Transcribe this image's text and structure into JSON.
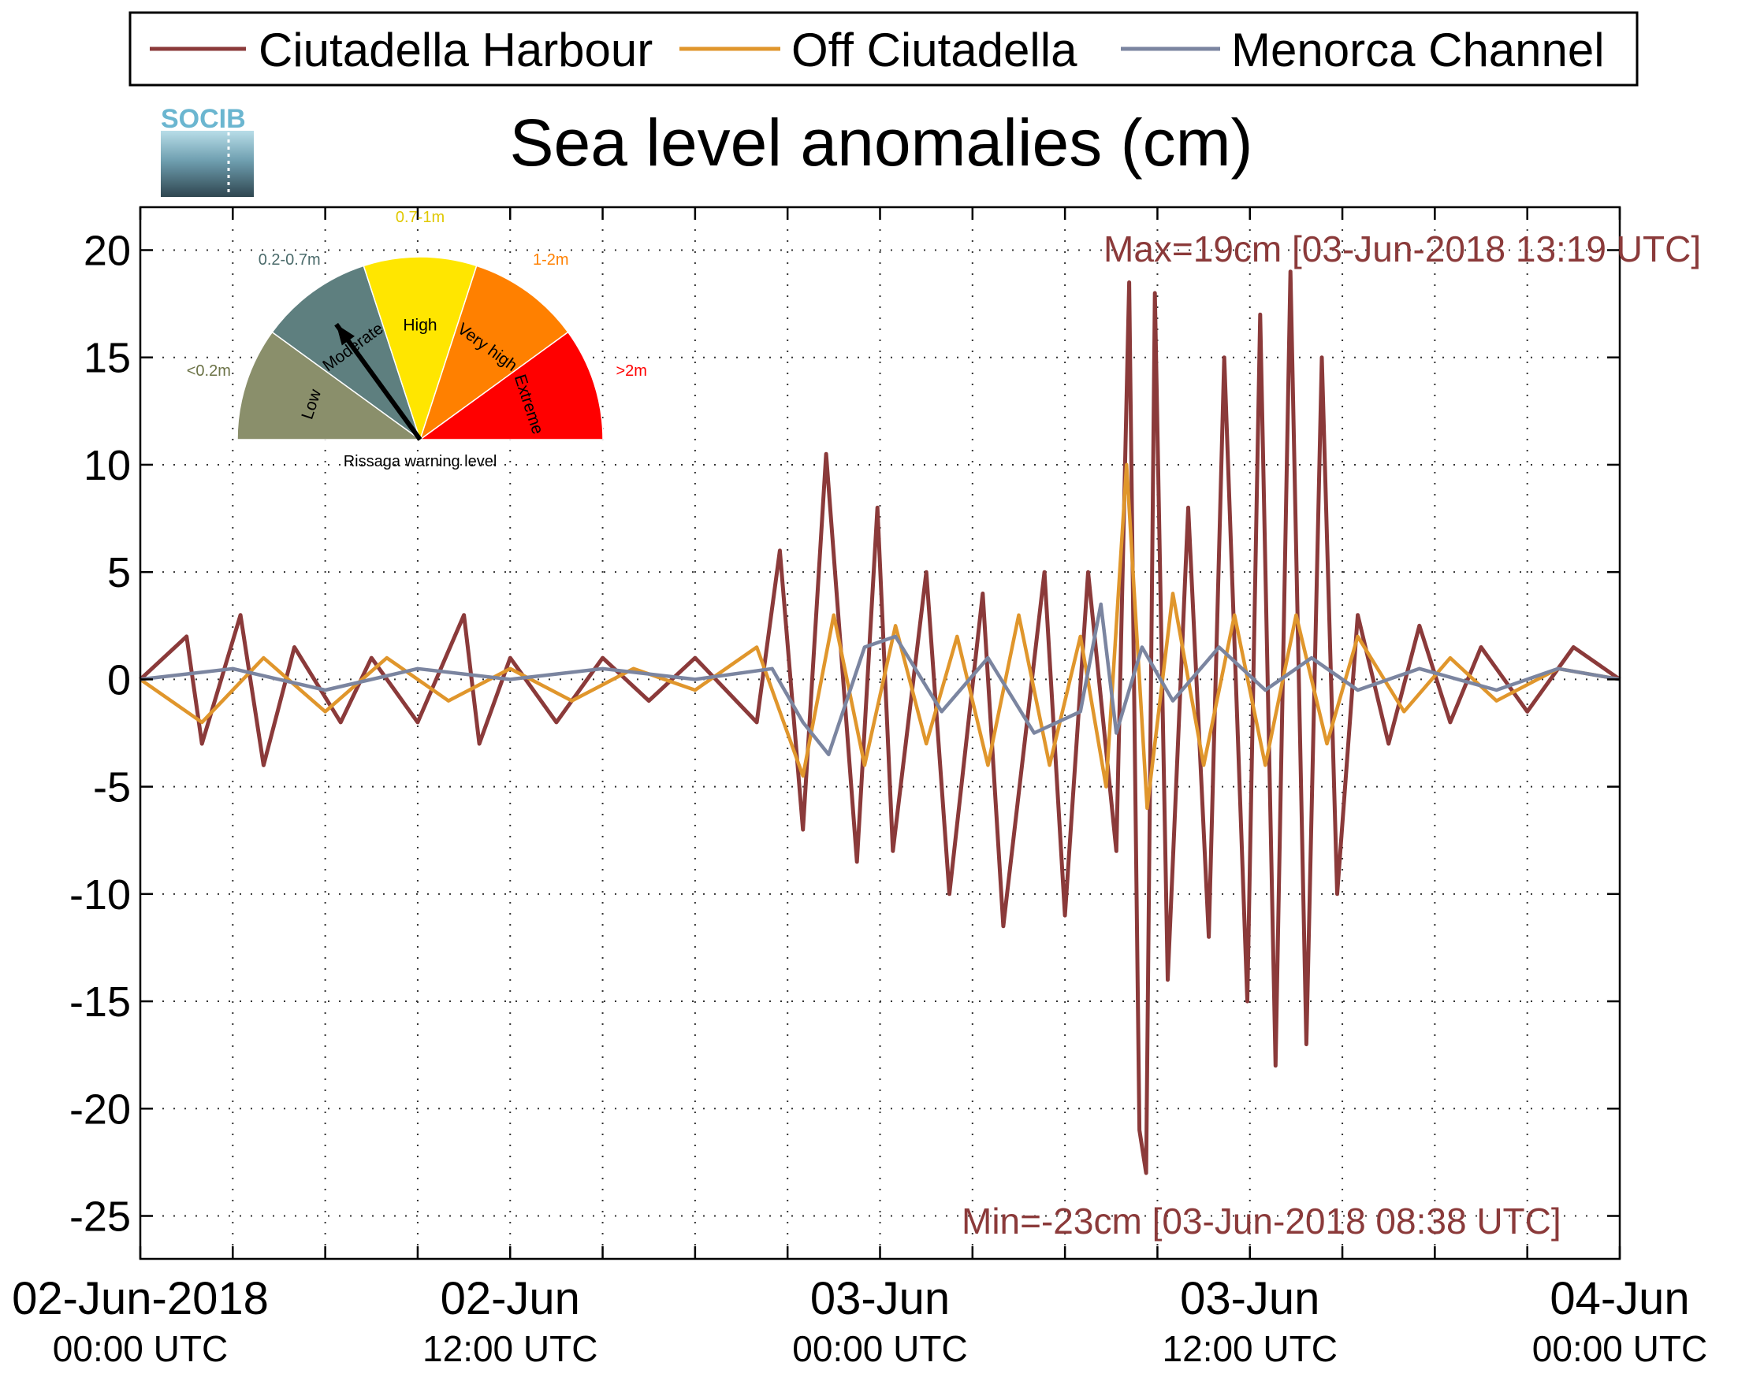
{
  "legend": {
    "items": [
      {
        "label": "Ciutadella Harbour",
        "color": "#8b3a3a"
      },
      {
        "label": "Off Ciutadella",
        "color": "#e0962c"
      },
      {
        "label": "Menorca Channel",
        "color": "#7b85a0"
      }
    ]
  },
  "logo": {
    "text": "SOCIB"
  },
  "annotations": {
    "max": "Max=19cm [03-Jun-2018 13:19 UTC]",
    "min": "Min=-23cm [03-Jun-2018 08:38 UTC]"
  },
  "gauge": {
    "title": "Rissaga warning level",
    "segments": [
      {
        "name": "Low",
        "range": "<0.2m",
        "color": "#8a8f6b",
        "label_color": "#6b7246"
      },
      {
        "name": "Moderate",
        "range": "0.2-0.7m",
        "color": "#5e7f7f",
        "label_color": "#4a6a6a"
      },
      {
        "name": "High",
        "range": "0.7-1m",
        "color": "#ffe600",
        "label_color": "#e0c800"
      },
      {
        "name": "Very high",
        "range": "1-2m",
        "color": "#ff8000",
        "label_color": "#ff8000"
      },
      {
        "name": "Extreme",
        "range": ">2m",
        "color": "#ff0000",
        "label_color": "#ff0000"
      }
    ],
    "current_level": "Moderate"
  },
  "chart_data": {
    "type": "line",
    "title": "Sea level anomalies (cm)",
    "xlabel": "",
    "ylabel": "",
    "xlim": [
      "2018-06-02T00:00",
      "2018-06-04T00:00"
    ],
    "ylim": [
      -27,
      22
    ],
    "grid": true,
    "legend_position": "top",
    "yticks": [
      20,
      15,
      10,
      5,
      0,
      -5,
      -10,
      -15,
      -20,
      -25
    ],
    "ytick_labels": [
      "20",
      "15",
      "10",
      "5",
      "0",
      "-5",
      "-10",
      "-15",
      "-20",
      "-25"
    ],
    "xticks": [
      {
        "t": "2018-06-02T00:00",
        "line1": "02-Jun-2018",
        "line2": "00:00 UTC"
      },
      {
        "t": "2018-06-02T12:00",
        "line1": "02-Jun",
        "line2": "12:00 UTC"
      },
      {
        "t": "2018-06-03T00:00",
        "line1": "03-Jun",
        "line2": "00:00 UTC"
      },
      {
        "t": "2018-06-03T12:00",
        "line1": "03-Jun",
        "line2": "12:00 UTC"
      },
      {
        "t": "2018-06-04T00:00",
        "line1": "04-Jun",
        "line2": "00:00 UTC"
      }
    ],
    "minor_xticks": [
      "2018-06-02T03:00",
      "2018-06-02T06:00",
      "2018-06-02T09:00",
      "2018-06-02T15:00",
      "2018-06-02T18:00",
      "2018-06-02T21:00",
      "2018-06-03T03:00",
      "2018-06-03T06:00",
      "2018-06-03T09:00",
      "2018-06-03T15:00",
      "2018-06-03T18:00",
      "2018-06-03T21:00"
    ],
    "series": [
      {
        "name": "Ciutadella Harbour",
        "color": "#8b3a3a",
        "x": [
          "2018-06-02T00:00",
          "2018-06-02T01:30",
          "2018-06-02T02:00",
          "2018-06-02T03:15",
          "2018-06-02T04:00",
          "2018-06-02T05:00",
          "2018-06-02T06:30",
          "2018-06-02T07:30",
          "2018-06-02T09:00",
          "2018-06-02T10:30",
          "2018-06-02T11:00",
          "2018-06-02T12:00",
          "2018-06-02T13:30",
          "2018-06-02T15:00",
          "2018-06-02T16:30",
          "2018-06-02T18:00",
          "2018-06-02T20:00",
          "2018-06-02T20:45",
          "2018-06-02T21:30",
          "2018-06-02T22:15",
          "2018-06-02T23:15",
          "2018-06-02T23:55",
          "2018-06-03T00:25",
          "2018-06-03T01:30",
          "2018-06-03T02:15",
          "2018-06-03T03:20",
          "2018-06-03T04:00",
          "2018-06-03T05:20",
          "2018-06-03T06:00",
          "2018-06-03T06:45",
          "2018-06-03T07:40",
          "2018-06-03T08:05",
          "2018-06-03T08:25",
          "2018-06-03T08:38",
          "2018-06-03T08:55",
          "2018-06-03T09:20",
          "2018-06-03T10:00",
          "2018-06-03T10:40",
          "2018-06-03T11:10",
          "2018-06-03T11:55",
          "2018-06-03T12:20",
          "2018-06-03T12:50",
          "2018-06-03T13:19",
          "2018-06-03T13:50",
          "2018-06-03T14:20",
          "2018-06-03T14:50",
          "2018-06-03T15:30",
          "2018-06-03T16:30",
          "2018-06-03T17:30",
          "2018-06-03T18:30",
          "2018-06-03T19:30",
          "2018-06-03T21:00",
          "2018-06-03T22:30",
          "2018-06-04T00:00"
        ],
        "values": [
          0,
          2,
          -3,
          3,
          -4,
          1.5,
          -2,
          1,
          -2,
          3,
          -3,
          1,
          -2,
          1,
          -1,
          1,
          -2,
          6,
          -7,
          10.5,
          -8.5,
          8,
          -8,
          5,
          -10,
          4,
          -11.5,
          5,
          -11,
          5,
          -8,
          18.5,
          -21,
          -23,
          18,
          -14,
          8,
          -12,
          15,
          -15,
          17,
          -18,
          19,
          -17,
          15,
          -10,
          3,
          -3,
          2.5,
          -2,
          1.5,
          -1.5,
          1.5,
          0
        ]
      },
      {
        "name": "Off Ciutadella",
        "color": "#e0962c",
        "x": [
          "2018-06-02T00:00",
          "2018-06-02T02:00",
          "2018-06-02T04:00",
          "2018-06-02T06:00",
          "2018-06-02T08:00",
          "2018-06-02T10:00",
          "2018-06-02T12:00",
          "2018-06-02T14:00",
          "2018-06-02T16:00",
          "2018-06-02T18:00",
          "2018-06-02T20:00",
          "2018-06-02T21:30",
          "2018-06-02T22:30",
          "2018-06-02T23:30",
          "2018-06-03T00:30",
          "2018-06-03T01:30",
          "2018-06-03T02:30",
          "2018-06-03T03:30",
          "2018-06-03T04:30",
          "2018-06-03T05:30",
          "2018-06-03T06:30",
          "2018-06-03T07:20",
          "2018-06-03T08:00",
          "2018-06-03T08:40",
          "2018-06-03T09:30",
          "2018-06-03T10:30",
          "2018-06-03T11:30",
          "2018-06-03T12:30",
          "2018-06-03T13:30",
          "2018-06-03T14:30",
          "2018-06-03T15:30",
          "2018-06-03T17:00",
          "2018-06-03T18:30",
          "2018-06-03T20:00",
          "2018-06-03T22:00",
          "2018-06-04T00:00"
        ],
        "values": [
          0,
          -2,
          1,
          -1.5,
          1,
          -1,
          0.5,
          -1,
          0.5,
          -0.5,
          1.5,
          -4.5,
          3,
          -4,
          2.5,
          -3,
          2,
          -4,
          3,
          -4,
          2,
          -5,
          10,
          -6,
          4,
          -4,
          3,
          -4,
          3,
          -3,
          2,
          -1.5,
          1,
          -1,
          0.5,
          0
        ]
      },
      {
        "name": "Menorca Channel",
        "color": "#7b85a0",
        "x": [
          "2018-06-02T00:00",
          "2018-06-02T03:00",
          "2018-06-02T06:00",
          "2018-06-02T09:00",
          "2018-06-02T12:00",
          "2018-06-02T15:00",
          "2018-06-02T18:00",
          "2018-06-02T20:30",
          "2018-06-02T21:30",
          "2018-06-02T22:20",
          "2018-06-02T23:30",
          "2018-06-03T00:30",
          "2018-06-03T02:00",
          "2018-06-03T03:30",
          "2018-06-03T05:00",
          "2018-06-03T06:30",
          "2018-06-03T07:10",
          "2018-06-03T07:40",
          "2018-06-03T08:30",
          "2018-06-03T09:30",
          "2018-06-03T11:00",
          "2018-06-03T12:30",
          "2018-06-03T14:00",
          "2018-06-03T15:30",
          "2018-06-03T17:30",
          "2018-06-03T20:00",
          "2018-06-03T22:00",
          "2018-06-04T00:00"
        ],
        "values": [
          0,
          0.5,
          -0.5,
          0.5,
          0,
          0.5,
          0,
          0.5,
          -2,
          -3.5,
          1.5,
          2,
          -1.5,
          1,
          -2.5,
          -1.5,
          3.5,
          -2.5,
          1.5,
          -1,
          1.5,
          -0.5,
          1,
          -0.5,
          0.5,
          -0.5,
          0.5,
          0
        ]
      }
    ]
  }
}
